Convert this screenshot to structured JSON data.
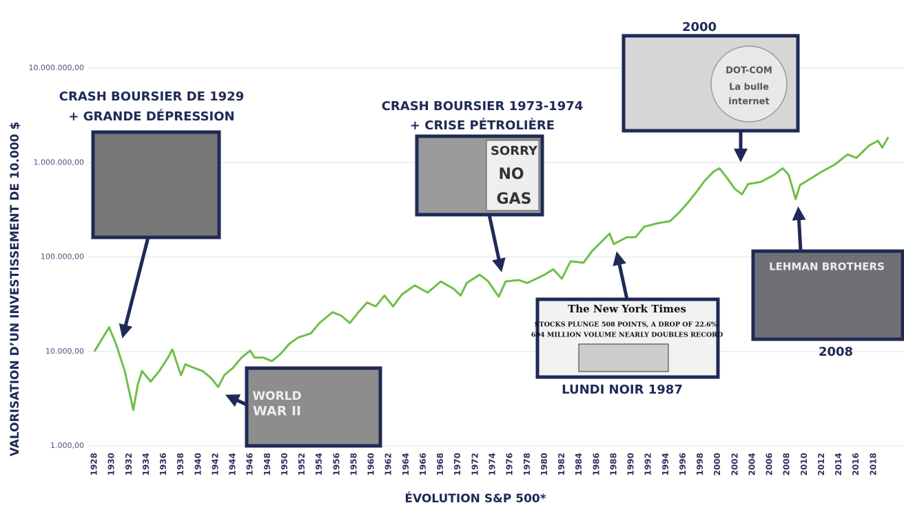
{
  "chart_data": {
    "type": "line",
    "x_label": "ÉVOLUTION S&P 500*",
    "y_label": "VALORISATION D’UN INVESTISSEMENT DE 10.000 $",
    "color": "#6dbf47",
    "log_scale": true,
    "grid": true,
    "xlim": [
      1928,
      2020
    ],
    "xticks": [
      1928,
      1930,
      1932,
      1934,
      1936,
      1938,
      1940,
      1942,
      1944,
      1946,
      1948,
      1950,
      1952,
      1954,
      1956,
      1958,
      1960,
      1962,
      1964,
      1966,
      1968,
      1970,
      1972,
      1974,
      1976,
      1978,
      1980,
      1982,
      1984,
      1986,
      1988,
      1990,
      1992,
      1994,
      1996,
      1998,
      2000,
      2002,
      2004,
      2006,
      2008,
      2010,
      2012,
      2014,
      2016,
      2018
    ],
    "ylim": [
      1000,
      10000000
    ],
    "yticks": [
      {
        "value": 1000,
        "label": "1.000,00"
      },
      {
        "value": 10000,
        "label": "10.000,00"
      },
      {
        "value": 100000,
        "label": "100.000,00"
      },
      {
        "value": 1000000,
        "label": "1.000.000,00"
      },
      {
        "value": 10000000,
        "label": "10.000.000,00"
      }
    ],
    "x": [
      1928,
      1929.7,
      1930.5,
      1931.5,
      1932.5,
      1933,
      1933.5,
      1934.5,
      1935.5,
      1936.5,
      1937,
      1938,
      1938.5,
      1939.5,
      1940.5,
      1941.5,
      1942.3,
      1943,
      1944,
      1945,
      1946,
      1946.5,
      1947.5,
      1948.5,
      1949.5,
      1950.5,
      1951.5,
      1953,
      1954,
      1955.5,
      1956.5,
      1957.5,
      1958.5,
      1959.5,
      1960.5,
      1961.5,
      1962.5,
      1963.5,
      1965,
      1966.5,
      1968,
      1969.5,
      1970.3,
      1971,
      1972.5,
      1973.5,
      1974.7,
      1975.5,
      1977,
      1978,
      1980,
      1981,
      1982,
      1983,
      1984.5,
      1985.5,
      1987.5,
      1988,
      1989.5,
      1990.5,
      1991.5,
      1993,
      1994.5,
      1995.5,
      1996.5,
      1997.5,
      1998.5,
      1999.5,
      2000.2,
      2001,
      2002,
      2002.8,
      2003.5,
      2005,
      2006.5,
      2007.5,
      2008.2,
      2009,
      2009.5,
      2011,
      2012,
      2013.5,
      2015,
      2016,
      2017.5,
      2018.5,
      2019,
      2019.7
    ],
    "values": [
      10000,
      18000,
      12000,
      6200,
      2400,
      4400,
      6200,
      4800,
      6200,
      8600,
      10500,
      5600,
      7300,
      6700,
      6200,
      5200,
      4200,
      5600,
      6700,
      8600,
      10200,
      8600,
      8600,
      7900,
      9400,
      12000,
      14000,
      15500,
      20000,
      26000,
      24000,
      20000,
      26000,
      33000,
      30000,
      39000,
      30000,
      40000,
      50000,
      42000,
      55000,
      46000,
      39000,
      53000,
      65000,
      55000,
      38000,
      55000,
      57000,
      53000,
      65000,
      74000,
      59000,
      90000,
      87000,
      116000,
      177000,
      137000,
      162000,
      162000,
      209000,
      227000,
      240000,
      294000,
      371000,
      484000,
      643000,
      800000,
      870000,
      700000,
      525000,
      460000,
      592000,
      625000,
      741000,
      870000,
      741000,
      410000,
      578000,
      700000,
      800000,
      950000,
      1220000,
      1120000,
      1520000,
      1700000,
      1440000,
      1860000
    ],
    "annotations": [
      {
        "lines": [
          "CRASH BOURSIER DE 1929",
          "+ GRANDE DÉPRESSION"
        ]
      },
      {
        "lines": [
          "CRASH BOURSIER 1973-1974",
          "+ CRISE PÉTROLIÈRE"
        ]
      },
      {
        "lines": [
          "2000"
        ]
      },
      {
        "lines": [
          "LUNDI NOIR 1987"
        ]
      },
      {
        "lines": [
          "2008"
        ]
      }
    ],
    "images": [
      {
        "texts": []
      },
      {
        "texts": [
          "SORRY",
          "NO",
          "GAS"
        ]
      },
      {
        "texts": [
          "DOT-COM",
          "La bulle",
          "internet"
        ]
      },
      {
        "texts": [
          "The New York Times",
          "STOCKS PLUNGE 508 POINTS, A DROP OF 22.6%;",
          "604 MILLION VOLUME NEARLY DOUBLES RECORD"
        ]
      },
      {
        "texts": [
          "LEHMAN BROTHERS"
        ]
      },
      {
        "texts": [
          "WORLD",
          "WAR II"
        ]
      }
    ]
  }
}
